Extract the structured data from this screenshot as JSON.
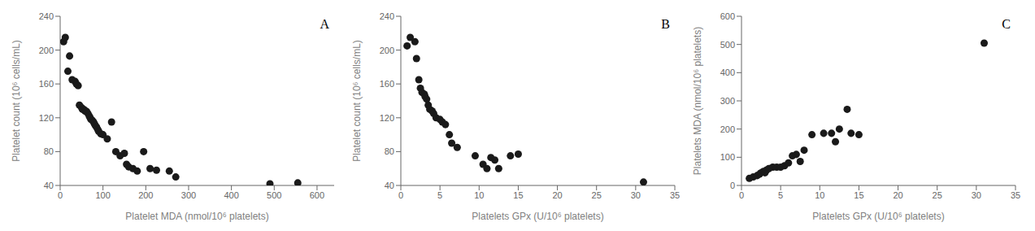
{
  "chart_data": [
    {
      "type": "scatter",
      "annotations": [
        "A"
      ],
      "x": [
        8,
        12,
        18,
        22,
        28,
        35,
        38,
        42,
        45,
        50,
        52,
        55,
        58,
        60,
        62,
        65,
        68,
        70,
        72,
        75,
        78,
        80,
        82,
        85,
        88,
        90,
        95,
        100,
        110,
        120,
        130,
        140,
        150,
        155,
        160,
        170,
        180,
        195,
        210,
        225,
        255,
        270,
        490,
        555
      ],
      "values": [
        210,
        215,
        175,
        193,
        165,
        163,
        160,
        158,
        135,
        132,
        130,
        130,
        128,
        128,
        127,
        125,
        122,
        120,
        118,
        117,
        115,
        113,
        111,
        109,
        106,
        104,
        101,
        100,
        95,
        115,
        80,
        75,
        78,
        65,
        62,
        60,
        57,
        80,
        60,
        58,
        57,
        50,
        42,
        43
      ],
      "x_label": "Platelet MDA (nmol/10⁶ platelets)",
      "y_label": "Platelet count (10⁶ cells/mL)",
      "xlim": [
        0,
        640
      ],
      "ylim": [
        40,
        240
      ],
      "xticks": [
        0,
        100,
        200,
        300,
        400,
        500,
        600
      ],
      "yticks": [
        40,
        80,
        120,
        160,
        200,
        240
      ],
      "color": "#1a1a1a",
      "marker": "circle",
      "grid": false
    },
    {
      "type": "scatter",
      "annotations": [
        "B"
      ],
      "x": [
        0.8,
        1.2,
        1.8,
        2.0,
        2.3,
        2.5,
        2.7,
        3.0,
        3.1,
        3.3,
        3.5,
        3.7,
        4.0,
        4.2,
        4.5,
        5.0,
        5.3,
        5.7,
        6.2,
        6.5,
        7.2,
        9.5,
        10.5,
        11.0,
        11.5,
        12.0,
        12.5,
        14.0,
        15.0,
        31.0
      ],
      "values": [
        205,
        215,
        210,
        190,
        165,
        155,
        150,
        148,
        145,
        142,
        135,
        130,
        128,
        125,
        120,
        118,
        115,
        112,
        100,
        90,
        85,
        75,
        65,
        60,
        73,
        70,
        60,
        75,
        77,
        44
      ],
      "x_label": "Platelets GPx (U/10⁶ platelets)",
      "y_label": "Platelet count (10⁶ cells/mL)",
      "xlim": [
        0,
        35
      ],
      "ylim": [
        40,
        240
      ],
      "xticks": [
        0,
        5,
        10,
        15,
        20,
        25,
        30,
        35
      ],
      "yticks": [
        40,
        80,
        120,
        160,
        200,
        240
      ],
      "color": "#1a1a1a",
      "marker": "circle",
      "grid": false
    },
    {
      "type": "scatter",
      "annotations": [
        "C"
      ],
      "x": [
        1.0,
        1.5,
        2.0,
        2.3,
        2.5,
        2.8,
        3.0,
        3.2,
        3.5,
        4.0,
        4.5,
        5.0,
        5.5,
        6.0,
        6.5,
        7.0,
        7.5,
        8.0,
        9.0,
        10.5,
        11.5,
        12.0,
        12.5,
        13.5,
        14.0,
        15.0,
        31.0
      ],
      "values": [
        25,
        30,
        35,
        40,
        45,
        50,
        45,
        55,
        60,
        65,
        65,
        65,
        70,
        80,
        105,
        110,
        85,
        125,
        180,
        185,
        185,
        155,
        200,
        270,
        185,
        180,
        505
      ],
      "x_label": "Platelets GPx (U/10⁶ platelets)",
      "y_label": "Platelets MDA (nmol/10⁶ platelets)",
      "xlim": [
        0,
        35
      ],
      "ylim": [
        0,
        600
      ],
      "xticks": [
        0,
        5,
        10,
        15,
        20,
        25,
        30,
        35
      ],
      "yticks": [
        0,
        100,
        200,
        300,
        400,
        500,
        600
      ],
      "color": "#1a1a1a",
      "marker": "circle",
      "grid": false
    }
  ]
}
